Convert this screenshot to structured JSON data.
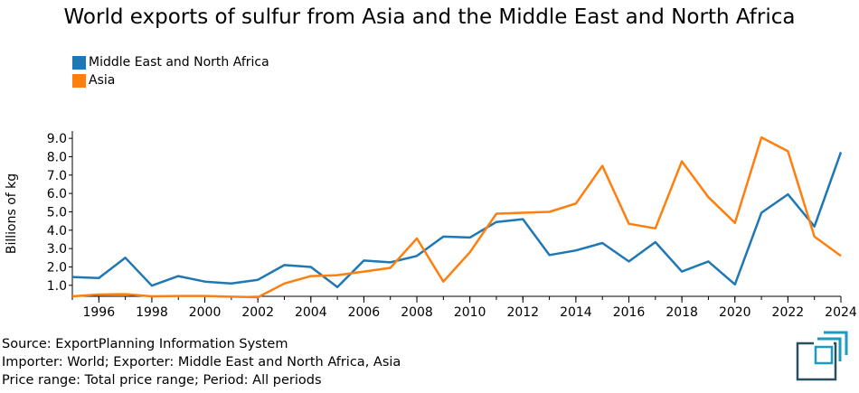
{
  "chart_data": {
    "type": "line",
    "title": "World exports of sulfur from Asia and the Middle East and North Africa",
    "ylabel": "Billions of kg",
    "xlabel": "",
    "x": [
      1995,
      1996,
      1997,
      1998,
      1999,
      2000,
      2001,
      2002,
      2003,
      2004,
      2005,
      2006,
      2007,
      2008,
      2009,
      2010,
      2011,
      2012,
      2013,
      2014,
      2015,
      2016,
      2017,
      2018,
      2019,
      2020,
      2021,
      2022,
      2023,
      2024
    ],
    "xlim": [
      1995,
      2024
    ],
    "ylim": [
      0.4,
      9.4
    ],
    "x_ticks": [
      "1996",
      "1998",
      "2000",
      "2002",
      "2004",
      "2006",
      "2008",
      "2010",
      "2012",
      "2014",
      "2016",
      "2018",
      "2020",
      "2022",
      "2024"
    ],
    "y_ticks": [
      "1.0",
      "2.0",
      "3.0",
      "4.0",
      "5.0",
      "6.0",
      "7.0",
      "8.0",
      "9.0"
    ],
    "legend_position": "top-left",
    "grid": false,
    "series": [
      {
        "name": "Middle East and North Africa",
        "color": "#1f77b4",
        "values": [
          1.45,
          1.4,
          2.5,
          0.98,
          1.5,
          1.2,
          1.1,
          1.3,
          2.1,
          2.0,
          0.9,
          2.35,
          2.25,
          2.6,
          3.65,
          3.6,
          4.45,
          4.6,
          2.65,
          2.9,
          3.3,
          2.3,
          3.35,
          1.75,
          2.3,
          1.05,
          4.95,
          5.95,
          4.2,
          8.25
        ]
      },
      {
        "name": "Asia",
        "color": "#ff7f0e",
        "values": [
          0.4,
          0.5,
          0.52,
          0.4,
          0.42,
          0.42,
          0.38,
          0.35,
          1.1,
          1.5,
          1.55,
          1.75,
          1.95,
          3.55,
          1.2,
          2.8,
          4.9,
          4.95,
          5.0,
          5.45,
          7.5,
          4.35,
          4.1,
          7.75,
          5.8,
          4.4,
          9.05,
          8.3,
          3.65,
          2.6
        ]
      }
    ]
  },
  "footer": {
    "source": "Source: ExportPlanning Information System",
    "importer": "Importer: World; Exporter: Middle East and North Africa, Asia",
    "price": "Price range: Total price range; Period: All periods"
  },
  "logo": {
    "icon": "exportplanning-logo-icon",
    "colors": [
      "#2b4f61",
      "#1b9bc0"
    ]
  }
}
